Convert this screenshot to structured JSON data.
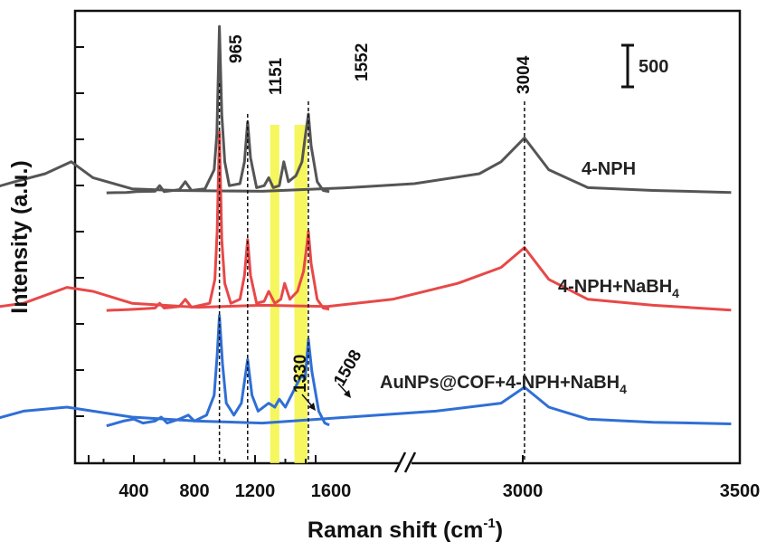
{
  "chart_data": {
    "type": "line",
    "xlabel": "Raman shift (cm",
    "xlabel_sup": "-1",
    "xlabel_close": ")",
    "ylabel": "Intensity (a.u.)",
    "x_ticks_left": [
      "400",
      "800",
      "1200",
      "1600"
    ],
    "x_ticks_right": [
      "3000",
      "3500"
    ],
    "x_range_left": [
      200,
      1700
    ],
    "x_range_right": [
      1700,
      3500
    ],
    "axis_break": true,
    "scale_bar_label": "500",
    "peaks": [
      "965",
      "1151",
      "1552",
      "3004"
    ],
    "arrow_annotations": [
      "1330",
      "1508"
    ],
    "highlight_bands_color": "#f5f542",
    "series": [
      {
        "name": "4-NPH",
        "color": "#555555",
        "left": [
          [
            220,
            0.2
          ],
          [
            350,
            0.3
          ],
          [
            420,
            0.5
          ],
          [
            540,
            0.6
          ],
          [
            570,
            2.0
          ],
          [
            600,
            0.5
          ],
          [
            700,
            1.0
          ],
          [
            740,
            3.0
          ],
          [
            780,
            0.8
          ],
          [
            870,
            1.2
          ],
          [
            930,
            6
          ],
          [
            948,
            15
          ],
          [
            965,
            42
          ],
          [
            980,
            20
          ],
          [
            1000,
            8
          ],
          [
            1030,
            2.0
          ],
          [
            1100,
            2.5
          ],
          [
            1130,
            8
          ],
          [
            1151,
            18
          ],
          [
            1170,
            9
          ],
          [
            1210,
            1.5
          ],
          [
            1260,
            2
          ],
          [
            1290,
            4
          ],
          [
            1320,
            1.5
          ],
          [
            1360,
            2
          ],
          [
            1390,
            8
          ],
          [
            1420,
            3
          ],
          [
            1470,
            4.5
          ],
          [
            1510,
            8
          ],
          [
            1530,
            14
          ],
          [
            1552,
            20
          ],
          [
            1570,
            12
          ],
          [
            1610,
            3
          ],
          [
            1650,
            0.8
          ],
          [
            1690,
            0.5
          ]
        ],
        "right": [
          [
            1750,
            0.5
          ],
          [
            1830,
            3
          ],
          [
            1900,
            5
          ],
          [
            1960,
            8
          ],
          [
            2010,
            4
          ],
          [
            2100,
            1.2
          ],
          [
            2200,
            0.8
          ],
          [
            2400,
            0.6
          ],
          [
            2600,
            1.5
          ],
          [
            2750,
            2.5
          ],
          [
            2900,
            5
          ],
          [
            2950,
            8
          ],
          [
            3004,
            14
          ],
          [
            3060,
            6
          ],
          [
            3150,
            1.5
          ],
          [
            3300,
            0.8
          ],
          [
            3480,
            0.3
          ]
        ]
      },
      {
        "name": "4-NPH+NaBH",
        "name_sub": "4",
        "color": "#e84848",
        "left": [
          [
            220,
            0.2
          ],
          [
            350,
            0.4
          ],
          [
            450,
            0.6
          ],
          [
            540,
            0.8
          ],
          [
            570,
            2.0
          ],
          [
            600,
            0.8
          ],
          [
            700,
            1.2
          ],
          [
            740,
            3.0
          ],
          [
            780,
            1.0
          ],
          [
            900,
            2.0
          ],
          [
            935,
            8
          ],
          [
            950,
            20
          ],
          [
            965,
            45
          ],
          [
            980,
            18
          ],
          [
            1000,
            7
          ],
          [
            1040,
            2
          ],
          [
            1100,
            3
          ],
          [
            1130,
            9
          ],
          [
            1151,
            18
          ],
          [
            1170,
            9
          ],
          [
            1210,
            2.0
          ],
          [
            1260,
            2.5
          ],
          [
            1290,
            5
          ],
          [
            1330,
            2
          ],
          [
            1370,
            3
          ],
          [
            1395,
            7
          ],
          [
            1430,
            3
          ],
          [
            1480,
            5
          ],
          [
            1520,
            10
          ],
          [
            1540,
            16
          ],
          [
            1552,
            20
          ],
          [
            1570,
            12
          ],
          [
            1610,
            3
          ],
          [
            1650,
            0.8
          ],
          [
            1690,
            0.5
          ]
        ],
        "right": [
          [
            1750,
            0.5
          ],
          [
            1850,
            2
          ],
          [
            1950,
            6
          ],
          [
            2010,
            5
          ],
          [
            2100,
            2
          ],
          [
            2250,
            1
          ],
          [
            2400,
            1.5
          ],
          [
            2550,
            1.2
          ],
          [
            2700,
            3
          ],
          [
            2850,
            7
          ],
          [
            2950,
            11
          ],
          [
            3004,
            16
          ],
          [
            3060,
            8
          ],
          [
            3150,
            3
          ],
          [
            3300,
            1.5
          ],
          [
            3480,
            0.3
          ]
        ]
      },
      {
        "name": "AuNPs@COF+4-NPH+NaBH",
        "name_sub": "4",
        "color": "#2f6fd6",
        "left": [
          [
            220,
            0.3
          ],
          [
            330,
            1.5
          ],
          [
            400,
            2.0
          ],
          [
            460,
            1.0
          ],
          [
            540,
            1.5
          ],
          [
            580,
            2.5
          ],
          [
            620,
            1.0
          ],
          [
            700,
            2.0
          ],
          [
            760,
            3.0
          ],
          [
            800,
            1.5
          ],
          [
            880,
            3.0
          ],
          [
            930,
            8
          ],
          [
            950,
            18
          ],
          [
            965,
            28
          ],
          [
            985,
            16
          ],
          [
            1010,
            6
          ],
          [
            1060,
            3
          ],
          [
            1110,
            6
          ],
          [
            1151,
            17
          ],
          [
            1180,
            8
          ],
          [
            1220,
            4
          ],
          [
            1290,
            6
          ],
          [
            1330,
            5
          ],
          [
            1360,
            7
          ],
          [
            1400,
            5
          ],
          [
            1440,
            8
          ],
          [
            1480,
            11
          ],
          [
            1508,
            13
          ],
          [
            1530,
            12
          ],
          [
            1552,
            22
          ],
          [
            1575,
            14
          ],
          [
            1620,
            4
          ],
          [
            1660,
            1.0
          ],
          [
            1690,
            0.5
          ]
        ],
        "right": [
          [
            1750,
            1
          ],
          [
            1850,
            4
          ],
          [
            1950,
            5
          ],
          [
            2010,
            4
          ],
          [
            2100,
            2.5
          ],
          [
            2250,
            1.5
          ],
          [
            2400,
            1.0
          ],
          [
            2600,
            2.5
          ],
          [
            2800,
            4
          ],
          [
            2950,
            6
          ],
          [
            3004,
            10
          ],
          [
            3060,
            5
          ],
          [
            3150,
            2
          ],
          [
            3300,
            1.2
          ],
          [
            3480,
            0.8
          ]
        ]
      }
    ]
  }
}
